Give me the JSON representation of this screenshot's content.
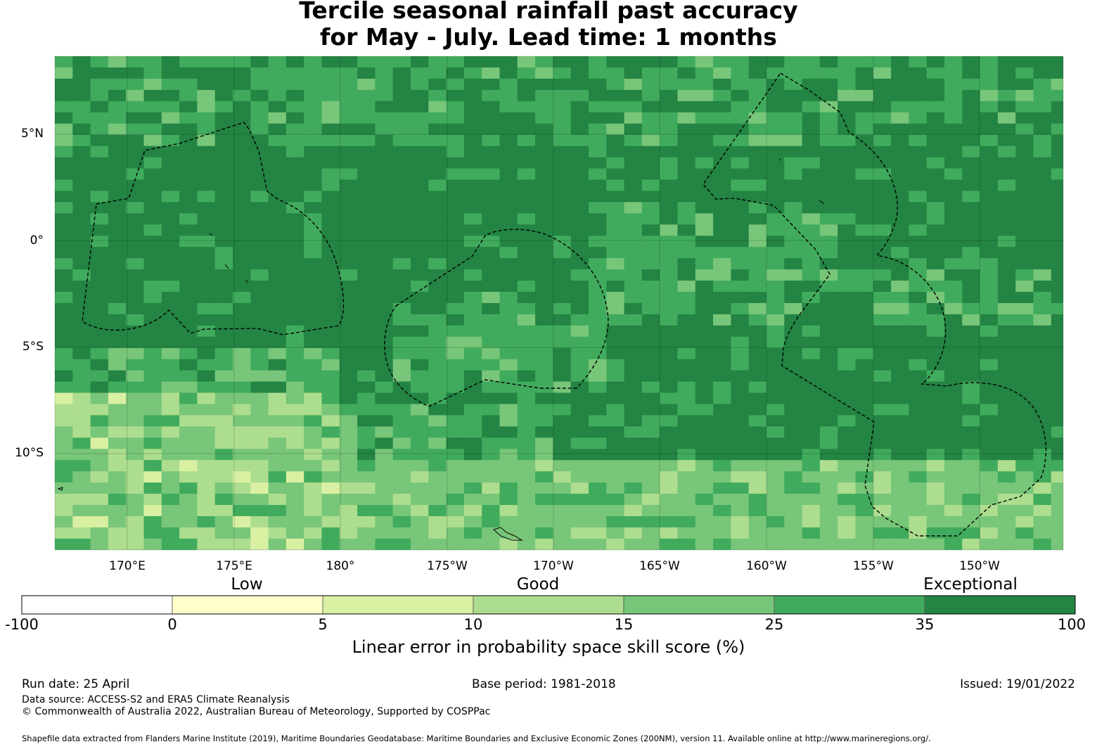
{
  "title": {
    "line1": "Tercile seasonal rainfall past accuracy",
    "line2": "for May - July. Lead time: 1 months"
  },
  "map": {
    "lat_labels": [
      "5°N",
      "0°",
      "5°S",
      "10°S"
    ],
    "lon_labels": [
      "170°E",
      "175°E",
      "180°",
      "175°W",
      "170°W",
      "165°W",
      "160°W",
      "155°W",
      "150°W"
    ]
  },
  "colorbar": {
    "categories": [
      "Low",
      "Good",
      "Exceptional"
    ],
    "ticks": [
      "-100",
      "0",
      "5",
      "10",
      "15",
      "25",
      "35",
      "100"
    ],
    "colors": [
      "#ffffff",
      "#ffffcc",
      "#d9f0a3",
      "#addd8e",
      "#78c679",
      "#41ab5d",
      "#238443"
    ],
    "label": "Linear error in probability space skill score (%)"
  },
  "footer": {
    "run_date": "Run date: 25 April",
    "base_period": "Base period: 1981-2018",
    "issued": "Issued: 19/01/2022",
    "data_source": "Data source: ACCESS-S2 and ERA5 Climate Reanalysis",
    "copyright": "© Commonwealth of Australia 2022, Australian Bureau of Meteorology, Supported by COSPPac",
    "shapefile": "Shapefile data extracted from Flanders Marine Institute (2019), Maritime Boundaries Geodatabase: Maritime Boundaries and Exclusive Economic Zones (200NM), version 11. Available online at http://www.marineregions.org/."
  }
}
